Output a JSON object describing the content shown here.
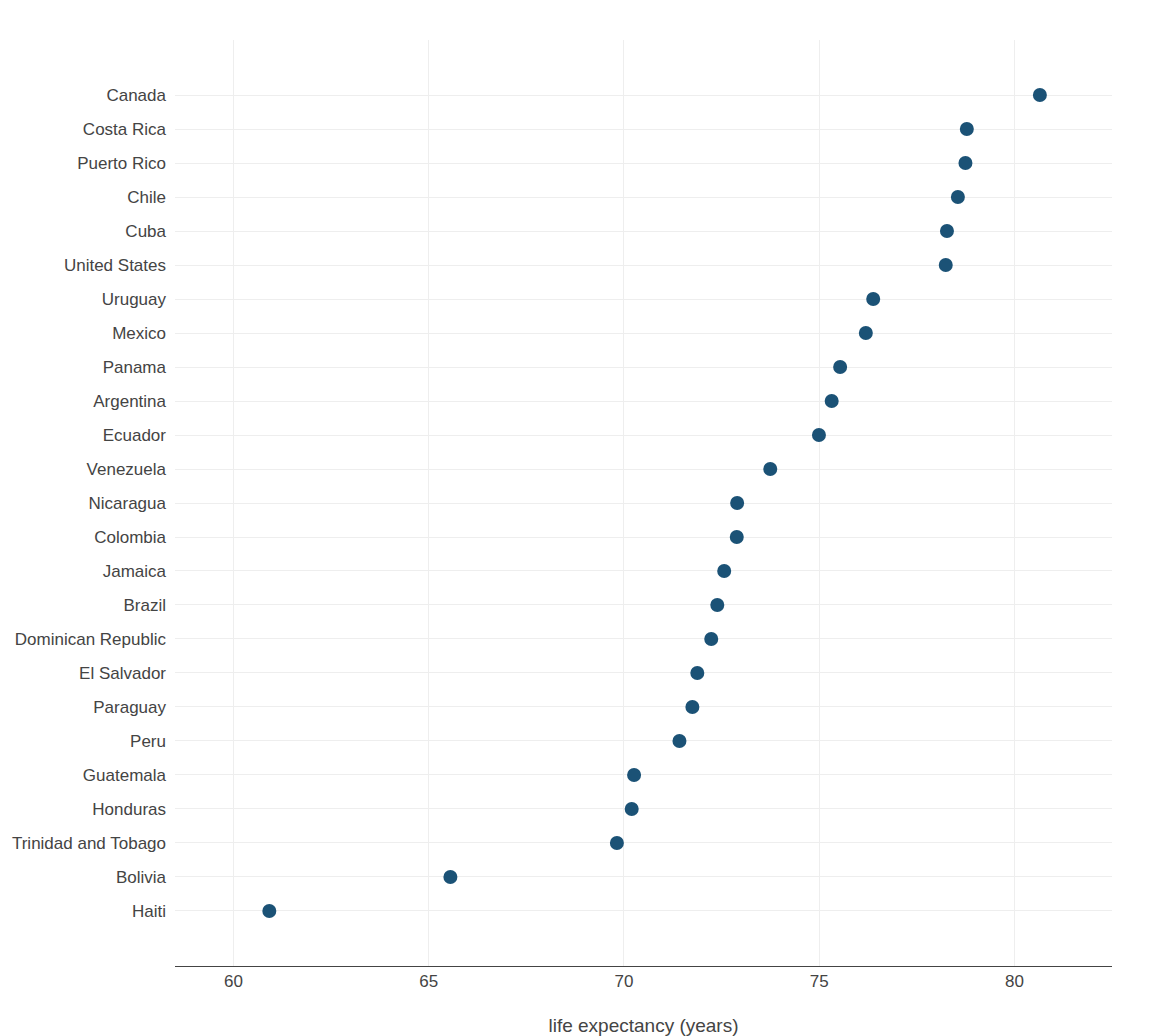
{
  "chart_data": {
    "type": "scatter",
    "orientation": "horizontal",
    "categories": [
      "Canada",
      "Costa Rica",
      "Puerto Rico",
      "Chile",
      "Cuba",
      "United States",
      "Uruguay",
      "Mexico",
      "Panama",
      "Argentina",
      "Ecuador",
      "Venezuela",
      "Nicaragua",
      "Colombia",
      "Jamaica",
      "Brazil",
      "Dominican Republic",
      "El Salvador",
      "Paraguay",
      "Peru",
      "Guatemala",
      "Honduras",
      "Trinidad and Tobago",
      "Bolivia",
      "Haiti"
    ],
    "values": [
      80.653,
      78.782,
      78.746,
      78.553,
      78.273,
      78.242,
      76.384,
      76.195,
      75.537,
      75.32,
      74.994,
      73.747,
      72.899,
      72.889,
      72.567,
      72.39,
      72.235,
      71.878,
      71.752,
      71.421,
      70.259,
      70.198,
      69.819,
      65.554,
      60.916
    ],
    "color": "#1b5276",
    "marker": "circle",
    "xlabel": "life expectancy (years)",
    "xlim": [
      58.5,
      82.5
    ],
    "xticks": [
      60,
      65,
      70,
      75,
      80
    ],
    "grid": true
  }
}
